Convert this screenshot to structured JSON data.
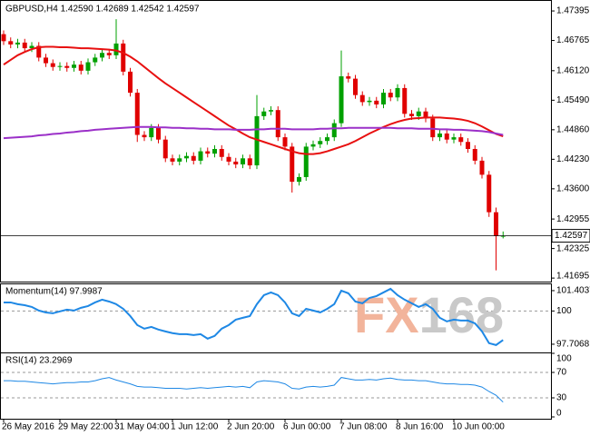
{
  "chart_data": [
    {
      "type": "candlestick",
      "title": "GBPUSD,H4  1.42590 1.42689 1.42542 1.42597",
      "categories": [
        "26 May 2016",
        null,
        null,
        null,
        null,
        null,
        null,
        null,
        "29 May 22:00",
        null,
        null,
        null,
        null,
        null,
        null,
        null,
        "31 May 04:00",
        null,
        null,
        null,
        null,
        null,
        null,
        null,
        "1 Jun 12:00",
        null,
        null,
        null,
        null,
        null,
        null,
        null,
        "2 Jun 20:00",
        null,
        null,
        null,
        null,
        null,
        null,
        null,
        "6 Jun 00:00",
        null,
        null,
        null,
        null,
        null,
        null,
        null,
        "7 Jun 08:00",
        null,
        null,
        null,
        null,
        null,
        null,
        null,
        "8 Jun 16:00",
        null,
        null,
        null,
        null,
        null,
        null,
        null,
        "10 Jun 00:00",
        null,
        null,
        null,
        null,
        null,
        null,
        null
      ],
      "open": [
        1.469,
        1.4675,
        1.4668,
        1.4672,
        1.466,
        1.4665,
        1.464,
        1.4628,
        1.462,
        1.4622,
        1.4618,
        1.4625,
        1.4612,
        1.463,
        1.464,
        1.465,
        1.4645,
        1.467,
        1.461,
        1.4565,
        1.4475,
        1.447,
        1.449,
        1.4465,
        1.4425,
        1.4418,
        1.4425,
        1.443,
        1.442,
        1.444,
        1.4435,
        1.4445,
        1.4428,
        1.4418,
        1.4412,
        1.4425,
        1.441,
        1.4515,
        1.4525,
        1.4528,
        1.447,
        1.445,
        1.4375,
        1.4385,
        1.445,
        1.4455,
        1.4462,
        1.447,
        1.45,
        1.46,
        1.4595,
        1.456,
        1.4545,
        1.4548,
        1.454,
        1.4565,
        1.4555,
        1.4575,
        1.452,
        1.4515,
        1.4525,
        1.451,
        1.447,
        1.4478,
        1.4465,
        1.447,
        1.446,
        1.4445,
        1.442,
        1.439,
        1.431,
        1.4259
      ],
      "high": [
        1.4698,
        1.4683,
        1.468,
        1.468,
        1.4673,
        1.4673,
        1.4648,
        1.4636,
        1.463,
        1.463,
        1.4633,
        1.4633,
        1.4638,
        1.4648,
        1.4658,
        1.4658,
        1.4722,
        1.4678,
        1.4618,
        1.4573,
        1.4483,
        1.4498,
        1.4498,
        1.4473,
        1.4433,
        1.4433,
        1.4438,
        1.4438,
        1.4448,
        1.4448,
        1.4453,
        1.4453,
        1.4436,
        1.4426,
        1.4433,
        1.4433,
        1.456,
        1.4533,
        1.4536,
        1.4536,
        1.4478,
        1.4458,
        1.4393,
        1.4458,
        1.4463,
        1.447,
        1.4478,
        1.4508,
        1.4655,
        1.4608,
        1.4603,
        1.4568,
        1.4556,
        1.4556,
        1.4573,
        1.4573,
        1.4583,
        1.4583,
        1.4528,
        1.4533,
        1.4533,
        1.4518,
        1.4486,
        1.4486,
        1.4478,
        1.4478,
        1.4468,
        1.4453,
        1.4428,
        1.4398,
        1.432,
        1.42689
      ],
      "low": [
        1.4667,
        1.466,
        1.466,
        1.4652,
        1.4652,
        1.4632,
        1.462,
        1.4612,
        1.4612,
        1.461,
        1.461,
        1.4604,
        1.4604,
        1.4622,
        1.4632,
        1.4637,
        1.4637,
        1.4602,
        1.4557,
        1.446,
        1.4462,
        1.4462,
        1.4457,
        1.4417,
        1.441,
        1.441,
        1.4417,
        1.4412,
        1.4412,
        1.4427,
        1.4427,
        1.442,
        1.441,
        1.4404,
        1.4404,
        1.4402,
        1.4402,
        1.4507,
        1.4517,
        1.4462,
        1.4442,
        1.4352,
        1.4367,
        1.4377,
        1.4442,
        1.4447,
        1.4454,
        1.4462,
        1.4492,
        1.4587,
        1.4552,
        1.4537,
        1.4537,
        1.4532,
        1.4532,
        1.4547,
        1.4547,
        1.4512,
        1.4507,
        1.4507,
        1.4502,
        1.4462,
        1.4462,
        1.4457,
        1.4457,
        1.4452,
        1.4437,
        1.4412,
        1.4382,
        1.43,
        1.4186,
        1.42542
      ],
      "close": [
        1.4675,
        1.4668,
        1.4672,
        1.466,
        1.4665,
        1.464,
        1.4628,
        1.462,
        1.4622,
        1.4618,
        1.4625,
        1.4612,
        1.463,
        1.464,
        1.465,
        1.4645,
        1.467,
        1.461,
        1.4565,
        1.4475,
        1.447,
        1.449,
        1.4465,
        1.4425,
        1.4418,
        1.4425,
        1.443,
        1.442,
        1.444,
        1.4435,
        1.4445,
        1.4428,
        1.4418,
        1.4412,
        1.4425,
        1.441,
        1.4515,
        1.4525,
        1.4528,
        1.447,
        1.445,
        1.4375,
        1.4385,
        1.445,
        1.4455,
        1.4462,
        1.447,
        1.45,
        1.46,
        1.4595,
        1.456,
        1.4545,
        1.4548,
        1.454,
        1.4565,
        1.4555,
        1.4575,
        1.452,
        1.4515,
        1.4525,
        1.451,
        1.447,
        1.4478,
        1.4465,
        1.447,
        1.446,
        1.4445,
        1.442,
        1.439,
        1.431,
        1.4259,
        1.42597
      ],
      "up_color": "#00a000",
      "down_color": "#e00000",
      "series": [
        {
          "color": "#e81010",
          "values": [
            1.4625,
            1.4635,
            1.4645,
            1.4652,
            1.4658,
            1.4662,
            1.4663,
            1.4663,
            1.4662,
            1.4662,
            1.4661,
            1.466,
            1.466,
            1.4659,
            1.4658,
            1.4657,
            1.4655,
            1.465,
            1.4642,
            1.4632,
            1.462,
            1.4608,
            1.4596,
            1.4585,
            1.4575,
            1.4565,
            1.4555,
            1.4545,
            1.4535,
            1.4525,
            1.4515,
            1.4505,
            1.4495,
            1.4487,
            1.4478,
            1.447,
            1.4465,
            1.446,
            1.4455,
            1.445,
            1.4445,
            1.444,
            1.4436,
            1.4434,
            1.4434,
            1.4436,
            1.444,
            1.4445,
            1.445,
            1.4455,
            1.4462,
            1.447,
            1.4478,
            1.4485,
            1.4492,
            1.4498,
            1.4503,
            1.4507,
            1.451,
            1.4511,
            1.4512,
            1.4512,
            1.4512,
            1.4511,
            1.451,
            1.4508,
            1.4505,
            1.45,
            1.4493,
            1.4485,
            1.4477,
            1.4472
          ]
        },
        {
          "color": "#9b30c8",
          "values": [
            1.4468,
            1.4469,
            1.447,
            1.4471,
            1.4472,
            1.4474,
            1.4475,
            1.4477,
            1.4478,
            1.448,
            1.4481,
            1.4483,
            1.4484,
            1.4486,
            1.4487,
            1.4488,
            1.4489,
            1.449,
            1.4491,
            1.4492,
            1.4492,
            1.4492,
            1.4491,
            1.4491,
            1.449,
            1.449,
            1.4489,
            1.4489,
            1.4488,
            1.4488,
            1.4487,
            1.4487,
            1.4487,
            1.4486,
            1.4486,
            1.4486,
            1.4487,
            1.4487,
            1.4488,
            1.4488,
            1.4488,
            1.4487,
            1.4487,
            1.4487,
            1.4487,
            1.4488,
            1.4488,
            1.4489,
            1.4489,
            1.449,
            1.449,
            1.449,
            1.449,
            1.449,
            1.449,
            1.449,
            1.4489,
            1.4489,
            1.4489,
            1.4488,
            1.4488,
            1.4488,
            1.4487,
            1.4487,
            1.4486,
            1.4486,
            1.4485,
            1.4484,
            1.4483,
            1.4481,
            1.4478,
            1.4475
          ]
        }
      ],
      "ylim": [
        1.4162,
        1.4759
      ],
      "yticks": [
        1.47395,
        1.46765,
        {
          "value": 1.4612,
          "label": "1.46120"
        },
        {
          "value": 1.4549,
          "label": "1.45490"
        },
        {
          "value": 1.4486,
          "label": "1.44860"
        },
        {
          "value": 1.4423,
          "label": "1.44230"
        },
        {
          "value": 1.436,
          "label": "1.43600"
        },
        1.42955,
        1.42325,
        1.41695
      ],
      "last_price": 1.42597
    },
    {
      "type": "line",
      "title": "Momentum(14) 97.9987",
      "color": "#1e88e5",
      "values": [
        100.59,
        100.59,
        100.47,
        100.4,
        100.28,
        100.03,
        99.9,
        99.84,
        99.97,
        100.09,
        100.03,
        100.22,
        100.34,
        100.59,
        100.78,
        100.65,
        100.47,
        100.15,
        99.65,
        99.03,
        98.78,
        98.9,
        98.72,
        98.59,
        98.47,
        98.4,
        98.4,
        98.34,
        98.4,
        98.09,
        98.28,
        98.78,
        99.03,
        99.4,
        99.53,
        99.65,
        100.47,
        101.09,
        101.28,
        101.09,
        100.59,
        99.84,
        99.65,
        100.15,
        100.03,
        99.9,
        100.15,
        100.47,
        101.4,
        101.22,
        100.65,
        100.53,
        100.9,
        101.03,
        101.28,
        101.53,
        101.09,
        100.78,
        100.53,
        100.28,
        100.47,
        100.15,
        99.53,
        99.28,
        99.4,
        99.34,
        99.34,
        99.15,
        98.59,
        97.78,
        97.65,
        97.9987
      ],
      "ylim": [
        97.14,
        101.84
      ],
      "yticks": [
        101.4037,
        100,
        97.7068
      ],
      "levels": [
        100
      ],
      "watermark": [
        "FX",
        "168"
      ]
    },
    {
      "type": "line",
      "title": "RSI(14) 23.2969",
      "color": "#1e88e5",
      "values": [
        57,
        57,
        56,
        56,
        55,
        54,
        53,
        52,
        53,
        54,
        54,
        55,
        55,
        57,
        60,
        62,
        58,
        55,
        52,
        48,
        47,
        47,
        46,
        45,
        45,
        45,
        44,
        45,
        46,
        45,
        46,
        47,
        48,
        47,
        48,
        46,
        55,
        57,
        56,
        55,
        52,
        45,
        44,
        47,
        48,
        47,
        48,
        50,
        62,
        60,
        58,
        58,
        59,
        58,
        60,
        61,
        59,
        58,
        58,
        57,
        57,
        55,
        53,
        52,
        52,
        51,
        51,
        50,
        47,
        40,
        34,
        23.2969
      ],
      "ylim": [
        0,
        100
      ],
      "yticks": [
        100,
        70,
        30,
        0
      ],
      "levels": [
        70,
        30
      ]
    }
  ]
}
